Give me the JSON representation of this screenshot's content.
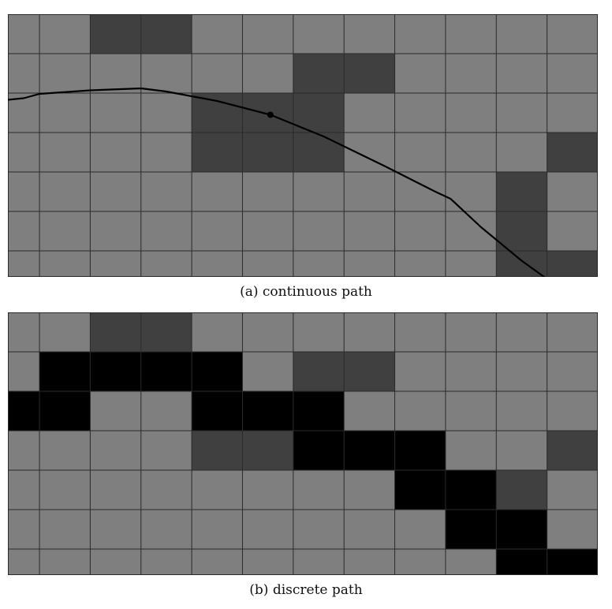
{
  "colors": {
    "free_cell": "#7f7f7f",
    "obstacle_cell": "#404040",
    "path_cell": "#000000",
    "grid_line": "#2a2a2a",
    "path_line": "#000000"
  },
  "grid": {
    "columns": 12,
    "rows": 7
  },
  "panels": [
    {
      "caption": "(a) continuous path",
      "obstacle_cells": [
        [
          0,
          2
        ],
        [
          0,
          3
        ],
        [
          1,
          6
        ],
        [
          1,
          7
        ],
        [
          2,
          4
        ],
        [
          2,
          5
        ],
        [
          2,
          6
        ],
        [
          3,
          4
        ],
        [
          3,
          5
        ],
        [
          3,
          6
        ],
        [
          3,
          11
        ],
        [
          4,
          10
        ],
        [
          5,
          10
        ],
        [
          6,
          10
        ],
        [
          6,
          11
        ]
      ],
      "path_cells": [],
      "path_curve": [
        [
          0,
          2.17
        ],
        [
          0.5,
          2.13
        ],
        [
          1,
          2.02
        ],
        [
          2,
          1.93
        ],
        [
          3,
          1.88
        ],
        [
          3.5,
          1.96
        ],
        [
          4.5,
          2.2
        ],
        [
          5.55,
          2.55
        ],
        [
          6.6,
          3.1
        ],
        [
          7.8,
          3.85
        ],
        [
          8.8,
          4.5
        ],
        [
          9.1,
          4.68
        ],
        [
          9.7,
          5.4
        ],
        [
          10.5,
          6.25
        ],
        [
          11.2,
          6.9
        ]
      ],
      "path_marker": [
        5.55,
        2.55
      ]
    },
    {
      "caption": "(b) discrete path",
      "obstacle_cells": [
        [
          0,
          2
        ],
        [
          0,
          3
        ],
        [
          1,
          6
        ],
        [
          1,
          7
        ],
        [
          3,
          4
        ],
        [
          3,
          5
        ],
        [
          3,
          11
        ],
        [
          4,
          10
        ]
      ],
      "path_cells": [
        [
          1,
          1
        ],
        [
          1,
          2
        ],
        [
          1,
          3
        ],
        [
          1,
          4
        ],
        [
          2,
          0
        ],
        [
          2,
          1
        ],
        [
          2,
          4
        ],
        [
          2,
          5
        ],
        [
          2,
          6
        ],
        [
          3,
          6
        ],
        [
          3,
          7
        ],
        [
          3,
          8
        ],
        [
          4,
          8
        ],
        [
          4,
          9
        ],
        [
          5,
          9
        ],
        [
          5,
          10
        ],
        [
          6,
          10
        ],
        [
          6,
          11
        ]
      ],
      "path_curve": [],
      "path_marker": null
    }
  ]
}
